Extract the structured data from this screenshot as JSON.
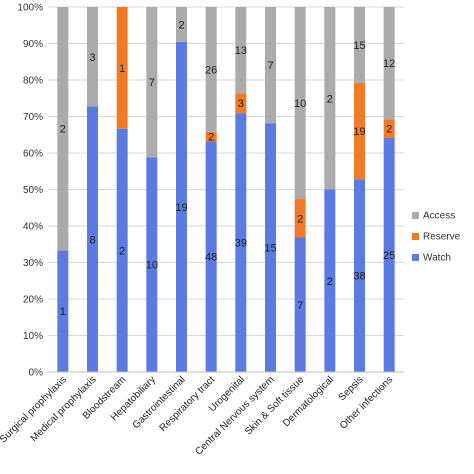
{
  "chart_data": {
    "type": "bar",
    "stacked": true,
    "percent_stacked": true,
    "categories": [
      "Surgical prophylaxis",
      "Medical prophylaxis",
      "Bloodstream",
      "Hepatobiliary",
      "Gastrointestinal",
      "Respiratory tract",
      "Urogenital",
      "Central Nervous system",
      "Skin & Soft tissue",
      "Dermatological",
      "Sepsis",
      "Other infections"
    ],
    "series": [
      {
        "name": "Watch",
        "color": "#5b7be0",
        "values": [
          1,
          8,
          2,
          10,
          19,
          48,
          39,
          15,
          7,
          2,
          38,
          25
        ]
      },
      {
        "name": "Reserve",
        "color": "#f07a28",
        "values": [
          0,
          0,
          1,
          0,
          0,
          2,
          3,
          0,
          2,
          0,
          19,
          2
        ]
      },
      {
        "name": "Access",
        "color": "#ababab",
        "values": [
          2,
          3,
          0,
          7,
          2,
          26,
          13,
          7,
          10,
          2,
          15,
          12
        ]
      }
    ],
    "ylim": [
      0,
      100
    ],
    "yticks": [
      "0%",
      "10%",
      "20%",
      "30%",
      "40%",
      "50%",
      "60%",
      "70%",
      "80%",
      "90%",
      "100%"
    ],
    "grid": true,
    "legend_position": "right",
    "legend_order": [
      "Access",
      "Reserve",
      "Watch"
    ]
  }
}
